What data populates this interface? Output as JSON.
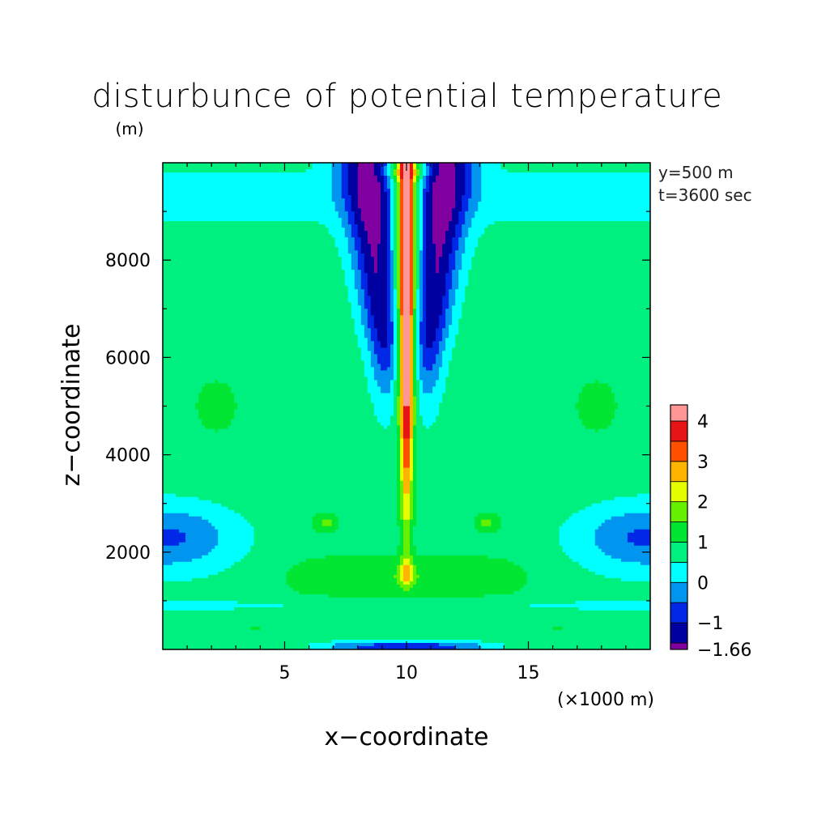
{
  "chart_data": {
    "type": "heatmap",
    "title": "disturbunce of potential temperature",
    "unit_label": "(m)",
    "xlabel": "x−coordinate",
    "ylabel": "z−coordinate",
    "x_unit_note": "(×1000 m)",
    "annotations": [
      "y=500 m",
      "t=3600 sec"
    ],
    "xlim": [
      0,
      20
    ],
    "ylim": [
      0,
      10000
    ],
    "x_ticks": [
      5,
      10,
      15
    ],
    "x_tick_labels": [
      "5",
      "10",
      "15"
    ],
    "y_ticks": [
      2000,
      4000,
      6000,
      8000
    ],
    "y_tick_labels": [
      "2000",
      "4000",
      "6000",
      "8000"
    ],
    "colorbar": {
      "min": -1.66,
      "max": 4.4,
      "levels": [
        -1.66,
        -1.5,
        -1,
        -0.5,
        0,
        0.5,
        1,
        1.5,
        2,
        2.5,
        3,
        3.5,
        4,
        4.4
      ],
      "colors": [
        "#8000a0",
        "#0000a0",
        "#0028e6",
        "#0096f0",
        "#00ffff",
        "#00f080",
        "#00e632",
        "#64f000",
        "#e6ff00",
        "#ffb400",
        "#ff5000",
        "#e61414",
        "#ff9696"
      ],
      "tick_values": [
        -1.66,
        -1,
        0,
        1,
        2,
        3,
        4
      ],
      "tick_labels": [
        "−1.66",
        "−1",
        "0",
        "1",
        "2",
        "3",
        "4"
      ]
    }
  }
}
